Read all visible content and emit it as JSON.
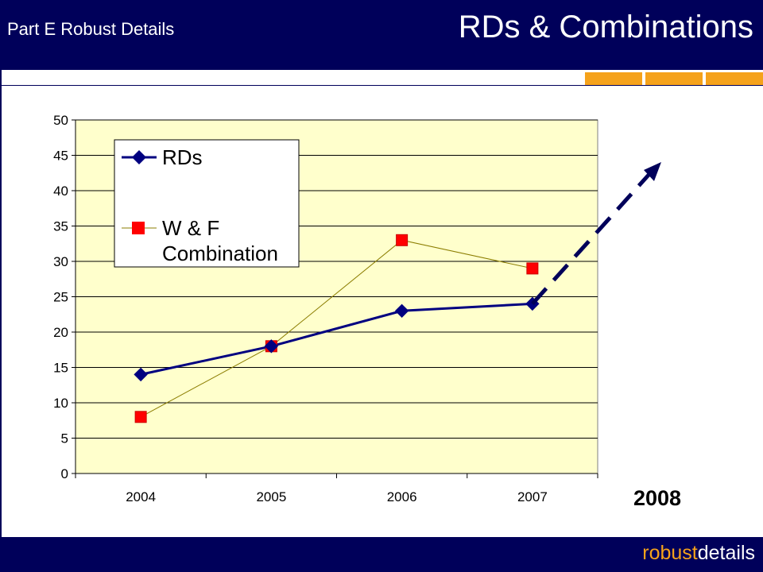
{
  "header": {
    "subtitle": "Part E Robust Details",
    "title": "RDs & Combinations"
  },
  "footer": {
    "brand_part1": "robust",
    "brand_part2": "details"
  },
  "colors": {
    "navy": "#00005a",
    "accent": "#f5a21b",
    "plot_bg": "#ffffcc",
    "rds_line": "#000080",
    "wf_marker": "#ff0000"
  },
  "chart_data": {
    "type": "line",
    "categories": [
      "2004",
      "2005",
      "2006",
      "2007"
    ],
    "ylim": [
      0,
      50
    ],
    "yticks": [
      0,
      5,
      10,
      15,
      20,
      25,
      30,
      35,
      40,
      45,
      50
    ],
    "grid": true,
    "legend_position": "top-left",
    "series": [
      {
        "name": "RDs",
        "values": [
          14,
          18,
          23,
          24
        ],
        "color": "#000080",
        "marker": "diamond"
      },
      {
        "name": "W & F Combination",
        "legend_lines": [
          "W & F",
          "Combination"
        ],
        "values": [
          8,
          18,
          33,
          29
        ],
        "color": "#ff0000",
        "line_color": "#8b7d00",
        "marker": "square"
      }
    ],
    "projection": {
      "label": "2008",
      "from_category": "2007",
      "from_value": 24,
      "style": "dashed-arrow",
      "color": "#00005a"
    }
  }
}
